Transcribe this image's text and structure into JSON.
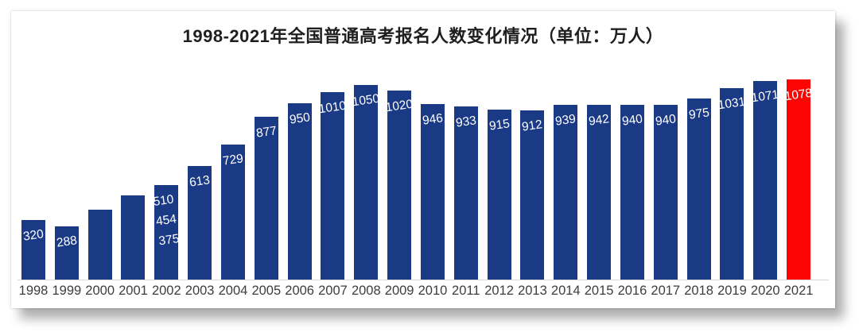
{
  "chart": {
    "title": "1998-2021年全国普通高考报名人数变化情况（单位：万人）",
    "unit": "万人",
    "bar_color": "#1b3a86",
    "highlight_color": "#fb0404"
  },
  "chart_data": {
    "type": "bar",
    "title": "1998-2021年全国普通高考报名人数变化情况（单位：万人）",
    "categories": [
      "1998",
      "1999",
      "2000",
      "2001",
      "2002",
      "2003",
      "2004",
      "2005",
      "2006",
      "2007",
      "2008",
      "2009",
      "2010",
      "2011",
      "2012",
      "2013",
      "2014",
      "2015",
      "2016",
      "2017",
      "2018",
      "2019",
      "2020",
      "2021"
    ],
    "values": [
      320,
      288,
      375,
      454,
      510,
      613,
      729,
      877,
      950,
      1010,
      1050,
      1020,
      946,
      933,
      915,
      912,
      939,
      942,
      940,
      940,
      975,
      1031,
      1071,
      1078
    ],
    "bar_labels": [
      [
        "320"
      ],
      [
        "288"
      ],
      [],
      [],
      [
        "510",
        "454",
        "375"
      ],
      [
        "613"
      ],
      [
        "729"
      ],
      [
        "877"
      ],
      [
        "950"
      ],
      [
        "1010"
      ],
      [
        "1050"
      ],
      [
        "1020"
      ],
      [
        "946"
      ],
      [
        "933"
      ],
      [
        "915"
      ],
      [
        "912"
      ],
      [
        "939"
      ],
      [
        "942"
      ],
      [
        "940"
      ],
      [
        "940"
      ],
      [
        "975"
      ],
      [
        "1031"
      ],
      [
        "1071"
      ],
      [
        "1078"
      ]
    ],
    "xlabel": "",
    "ylabel": "",
    "ylim": [
      0,
      1100
    ],
    "grid": false,
    "legend": "none",
    "bar_color": "#1b3a86",
    "highlight_index": 23,
    "highlight_color": "#fb0404",
    "value_label_color": "#ffffff",
    "tick_label_color": "#3d3d3d",
    "axis_line_color": "#d9d9d9"
  }
}
